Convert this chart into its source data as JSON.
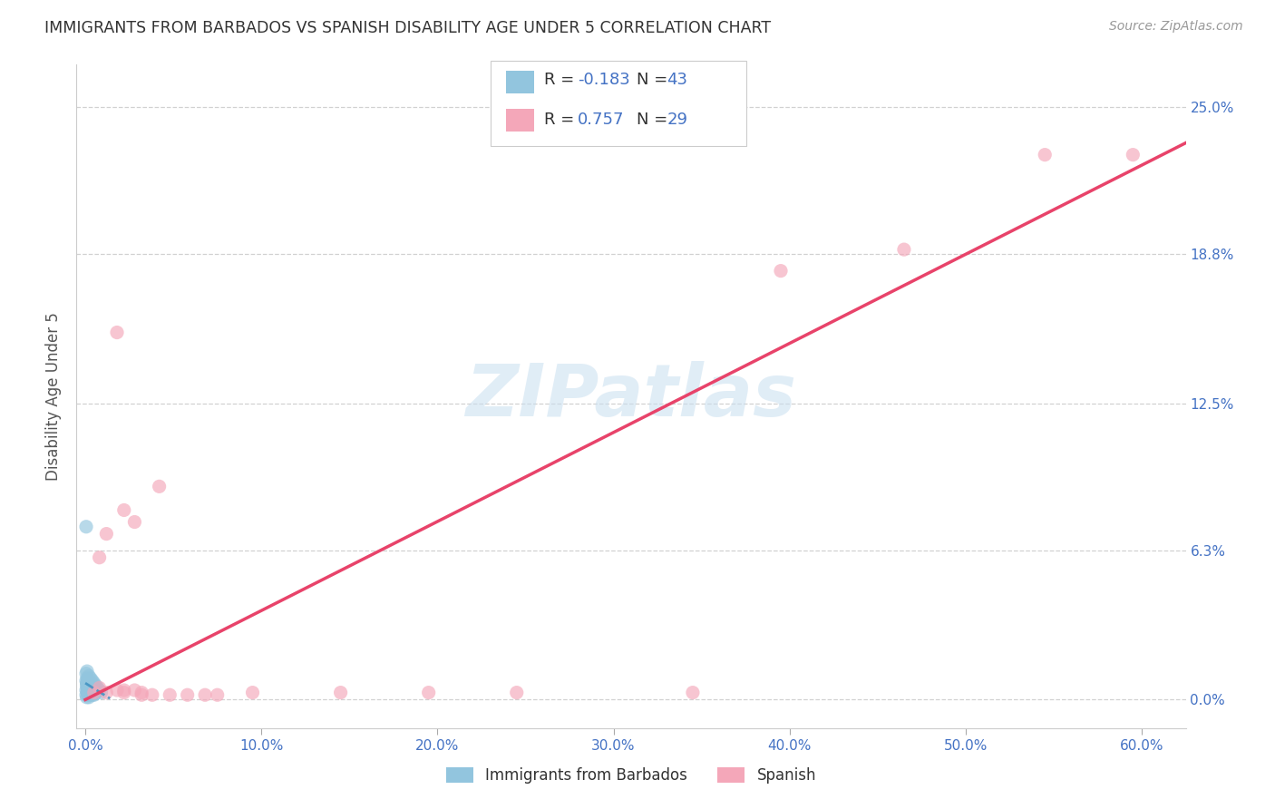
{
  "title": "IMMIGRANTS FROM BARBADOS VS SPANISH DISABILITY AGE UNDER 5 CORRELATION CHART",
  "source": "Source: ZipAtlas.com",
  "ylabel": "Disability Age Under 5",
  "xlabel_ticks": [
    "0.0%",
    "10.0%",
    "20.0%",
    "30.0%",
    "40.0%",
    "50.0%",
    "60.0%"
  ],
  "xlabel_vals": [
    0.0,
    0.1,
    0.2,
    0.3,
    0.4,
    0.5,
    0.6
  ],
  "ylabel_ticks_right": [
    "25.0%",
    "18.8%",
    "12.5%",
    "6.3%",
    "0.0%"
  ],
  "ylabel_vals": [
    0.0,
    0.063,
    0.125,
    0.188,
    0.25
  ],
  "xlim": [
    -0.005,
    0.625
  ],
  "ylim": [
    -0.012,
    0.268
  ],
  "watermark": "ZIPatlas",
  "legend_blue_label": "Immigrants from Barbados",
  "legend_pink_label": "Spanish",
  "blue_color": "#92c5de",
  "pink_color": "#f4a7b9",
  "blue_line_color": "#4393c3",
  "pink_line_color": "#e8436a",
  "blue_scatter_x": [
    0.0005,
    0.0008,
    0.001,
    0.0015,
    0.002,
    0.0005,
    0.001,
    0.0018,
    0.0008,
    0.0012,
    0.0015,
    0.002,
    0.0025,
    0.003,
    0.0008,
    0.0012,
    0.0005,
    0.001,
    0.0018,
    0.0025,
    0.003,
    0.0035,
    0.004,
    0.001,
    0.0015,
    0.002,
    0.0028,
    0.003,
    0.004,
    0.0045,
    0.005,
    0.006,
    0.002,
    0.003,
    0.004,
    0.005,
    0.006,
    0.007,
    0.008,
    0.009,
    0.0005,
    0.001,
    0.0005
  ],
  "blue_scatter_y": [
    0.002,
    0.001,
    0.003,
    0.002,
    0.001,
    0.004,
    0.005,
    0.003,
    0.006,
    0.004,
    0.005,
    0.003,
    0.002,
    0.004,
    0.007,
    0.006,
    0.008,
    0.007,
    0.006,
    0.005,
    0.004,
    0.003,
    0.002,
    0.009,
    0.008,
    0.007,
    0.006,
    0.005,
    0.004,
    0.003,
    0.002,
    0.003,
    0.01,
    0.009,
    0.008,
    0.007,
    0.006,
    0.005,
    0.004,
    0.003,
    0.011,
    0.012,
    0.073
  ],
  "pink_scatter_x": [
    0.005,
    0.012,
    0.018,
    0.022,
    0.008,
    0.028,
    0.032,
    0.022,
    0.038,
    0.048,
    0.008,
    0.012,
    0.018,
    0.022,
    0.058,
    0.042,
    0.068,
    0.028,
    0.032,
    0.075,
    0.095,
    0.145,
    0.195,
    0.245,
    0.345,
    0.395,
    0.465,
    0.545,
    0.595
  ],
  "pink_scatter_y": [
    0.003,
    0.003,
    0.004,
    0.003,
    0.06,
    0.004,
    0.003,
    0.004,
    0.002,
    0.002,
    0.005,
    0.07,
    0.155,
    0.08,
    0.002,
    0.09,
    0.002,
    0.075,
    0.002,
    0.002,
    0.003,
    0.003,
    0.003,
    0.003,
    0.003,
    0.181,
    0.19,
    0.23,
    0.23
  ],
  "blue_trend_x": [
    0.0,
    0.014
  ],
  "blue_trend_y": [
    0.007,
    0.0005
  ],
  "pink_trend_x": [
    0.0,
    0.625
  ],
  "pink_trend_y": [
    0.0,
    0.235
  ],
  "grid_color": "#cccccc",
  "bg_color": "#ffffff",
  "axis_color": "#4472c4",
  "title_color": "#333333",
  "dot_size": 120,
  "dot_alpha": 0.65
}
